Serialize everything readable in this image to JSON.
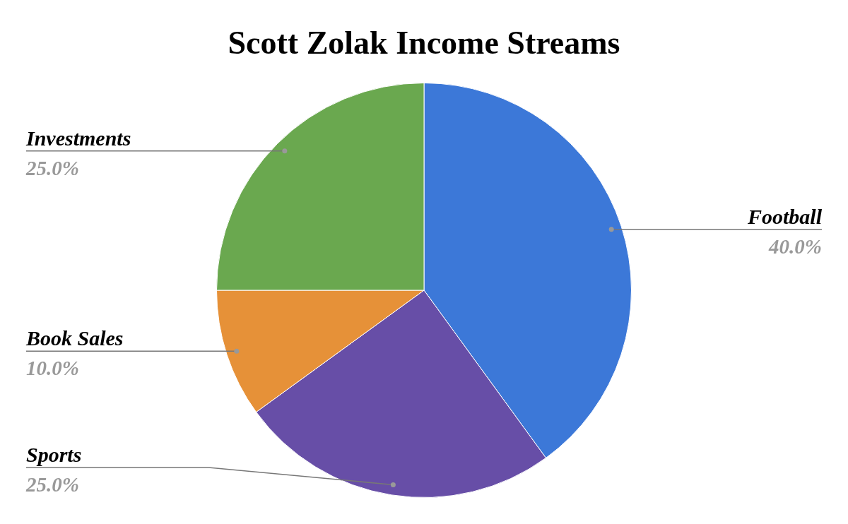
{
  "chart_data": {
    "type": "pie",
    "title": "Scott Zolak Income Streams",
    "categories": [
      "Football",
      "Sports",
      "Book Sales",
      "Investments"
    ],
    "values": [
      40,
      25,
      10,
      25
    ],
    "colors": [
      "#3c78d8",
      "#674ea7",
      "#e69138",
      "#6aa84f"
    ],
    "value_labels": [
      "40.0%",
      "25.0%",
      "10.0%",
      "25.0%"
    ]
  }
}
